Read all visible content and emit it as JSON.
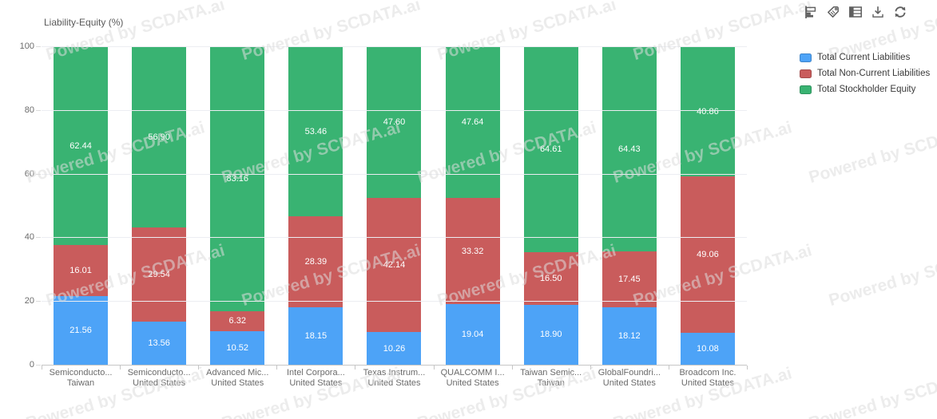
{
  "title": "Liability-Equity (%)",
  "watermark": {
    "text": "Powered by SCDATA.ai"
  },
  "toolbar": {
    "icons": [
      "bar-chart-icon",
      "tag-icon",
      "table-icon",
      "download-icon",
      "refresh-icon"
    ]
  },
  "legend": {
    "items": [
      {
        "label": "Total Current Liabilities",
        "color": "#4da3f7"
      },
      {
        "label": "Total Non-Current Liabilities",
        "color": "#c95c5c"
      },
      {
        "label": "Total Stockholder Equity",
        "color": "#39b372"
      }
    ]
  },
  "chart_data": {
    "type": "bar",
    "stacked": true,
    "title": "Liability-Equity (%)",
    "ylim": [
      0,
      100
    ],
    "yticks": [
      0,
      20,
      40,
      60,
      80,
      100
    ],
    "grid": true,
    "legend_position": "right",
    "value_label_decimals": 2,
    "value_label_color": "#ffffff",
    "categories": [
      {
        "company": "Semiconducto...",
        "country": "Taiwan"
      },
      {
        "company": "Semiconducto...",
        "country": "United States"
      },
      {
        "company": "Advanced Mic...",
        "country": "United States"
      },
      {
        "company": "Intel Corpora...",
        "country": "United States"
      },
      {
        "company": "Texas Instrum...",
        "country": "United States"
      },
      {
        "company": "QUALCOMM I...",
        "country": "United States"
      },
      {
        "company": "Taiwan Semic...",
        "country": "Taiwan"
      },
      {
        "company": "GlobalFoundri...",
        "country": "United States"
      },
      {
        "company": "Broadcom Inc.",
        "country": "United States"
      }
    ],
    "series": [
      {
        "name": "Total Current Liabilities",
        "color": "#4da3f7",
        "values": [
          21.56,
          13.56,
          10.52,
          18.15,
          10.26,
          19.04,
          18.9,
          18.12,
          10.08
        ]
      },
      {
        "name": "Total Non-Current Liabilities",
        "color": "#c95c5c",
        "values": [
          16.01,
          29.54,
          6.32,
          28.39,
          42.14,
          33.32,
          16.5,
          17.45,
          49.06
        ]
      },
      {
        "name": "Total Stockholder Equity",
        "color": "#39b372",
        "values": [
          62.44,
          56.9,
          83.16,
          53.46,
          47.6,
          47.64,
          64.61,
          64.43,
          40.86
        ]
      }
    ]
  },
  "colors": {
    "grid": "#ecedf2",
    "axis": "#c6c6c6",
    "tick_text": "#6b6b6b",
    "icon": "#5f5f5f"
  }
}
